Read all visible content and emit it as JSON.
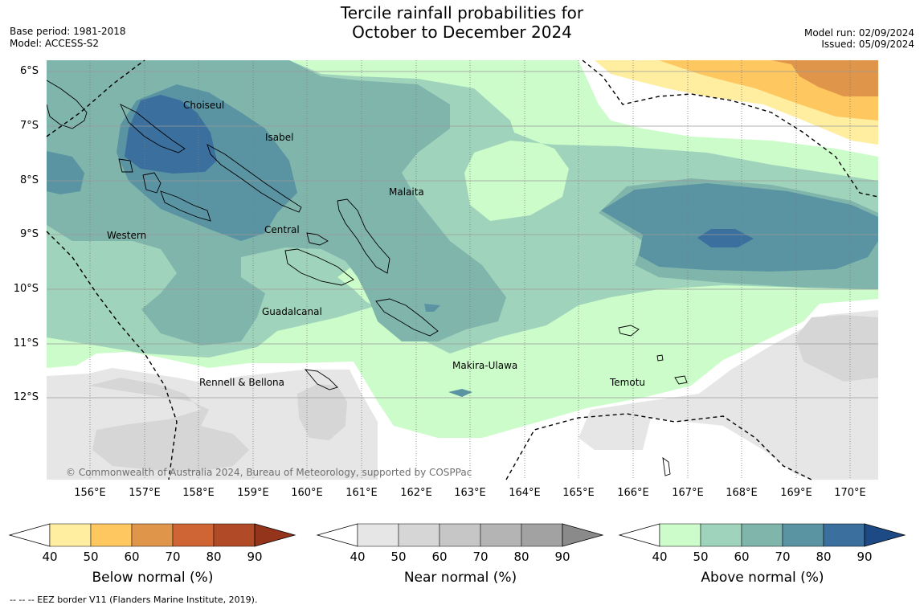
{
  "title_line1": "Tercile rainfall probabilities for",
  "title_line2": "October to December 2024",
  "meta_left": {
    "base_period": "Base period: 1981-2018",
    "model": "Model: ACCESS-S2"
  },
  "meta_right": {
    "model_run": "Model run: 02/09/2024",
    "issued": "Issued: 05/09/2024"
  },
  "lat_labels": [
    "6°S",
    "7°S",
    "8°S",
    "9°S",
    "10°S",
    "11°S",
    "12°S"
  ],
  "lon_labels": [
    "156°E",
    "157°E",
    "158°E",
    "159°E",
    "160°E",
    "161°E",
    "162°E",
    "163°E",
    "164°E",
    "165°E",
    "166°E",
    "167°E",
    "168°E",
    "169°E",
    "170°E"
  ],
  "region_labels": {
    "choiseul": "Choiseul",
    "isabel": "Isabel",
    "malaita": "Malaita",
    "central": "Central",
    "western": "Western",
    "guadalcanal": "Guadalcanal",
    "makira": "Makira-Ulawa",
    "rennell": "Rennell & Bellona",
    "temotu": "Temotu"
  },
  "copyright": "© Commonwealth of Australia 2024, Bureau of Meteorology, supported by COSPPac",
  "colorbars": [
    {
      "title": "Below normal (%)",
      "ticks": [
        "40",
        "50",
        "60",
        "70",
        "80",
        "90"
      ],
      "colors": [
        "#ffeda0",
        "#fec760",
        "#e0964a",
        "#cf6534",
        "#b14a26",
        "#93341b"
      ]
    },
    {
      "title": "Near normal (%)",
      "ticks": [
        "40",
        "50",
        "60",
        "70",
        "80",
        "90"
      ],
      "colors": [
        "#e6e6e6",
        "#d6d6d6",
        "#c6c6c6",
        "#b4b4b4",
        "#a2a2a2",
        "#8a8a8a"
      ]
    },
    {
      "title": "Above normal (%)",
      "ticks": [
        "40",
        "50",
        "60",
        "70",
        "80",
        "90"
      ],
      "colors": [
        "#ccfcca",
        "#a0d3bb",
        "#80b5ac",
        "#5a94a3",
        "#3a6f9e",
        "#1d4a84"
      ]
    }
  ],
  "footnote": "--  --  -- EEZ border V11 (Flanders Marine Institute, 2019)."
}
